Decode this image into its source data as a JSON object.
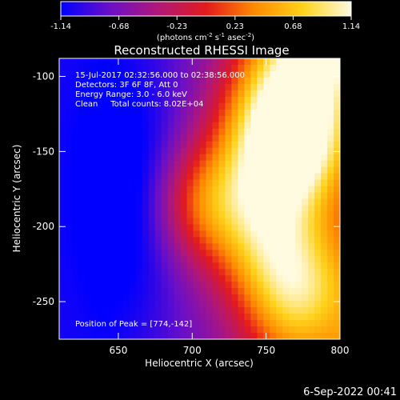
{
  "chart_data": {
    "type": "heatmap",
    "title": "Reconstructed RHESSI Image",
    "xlabel": "Heliocentric X (arcsec)",
    "ylabel": "Heliocentric Y (arcsec)",
    "xlim": [
      610,
      800
    ],
    "ylim": [
      -275,
      -88
    ],
    "x_ticks": [
      650,
      700,
      750,
      800
    ],
    "y_ticks": [
      -100,
      -150,
      -200,
      -250
    ],
    "colorbar": {
      "range": [
        -1.14,
        1.14
      ],
      "ticks": [
        "-1.14",
        "-0.68",
        "-0.23",
        "0.23",
        "0.68",
        "1.14"
      ],
      "units_html": "(photons cm<tspan baseline-shift='super' font-size='7'>-2</tspan> s<tspan baseline-shift='super' font-size='7'>-1</tspan> asec<tspan baseline-shift='super' font-size='7'>-2</tspan>)",
      "colors": [
        "#0000ff",
        "#6a0fc8",
        "#b0177a",
        "#e31a1c",
        "#ff8a00",
        "#ffd21a",
        "#fffbe0"
      ]
    },
    "annotations": [
      "15-Jul-2017 02:32:56.000 to 02:38:56.000",
      "Detectors: 3F 6F 8F, Att 0",
      "Energy Range: 3.0 - 6.0 keV",
      "Clean     Total counts: 8.02E+04"
    ],
    "peak_label": "Position of Peak = [774,-142]",
    "peak": [
      774,
      -142
    ],
    "sources": [
      {
        "x": 774,
        "y": -142,
        "amp": 1.14
      },
      {
        "x": 705,
        "y": -185,
        "amp": 0.85
      }
    ],
    "date_stamp": "6-Sep-2022 00:41"
  }
}
